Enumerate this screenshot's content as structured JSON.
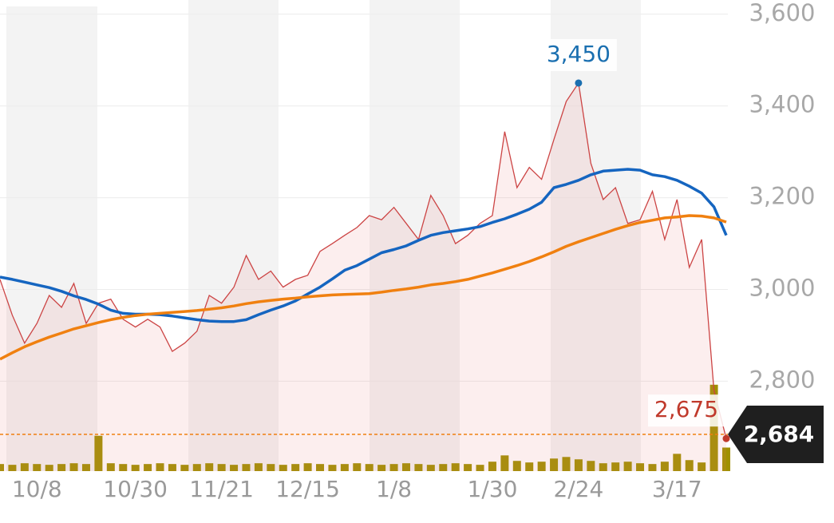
{
  "chart_data": {
    "type": "line",
    "categories": [
      null,
      null,
      null,
      "10/8",
      null,
      null,
      null,
      null,
      null,
      null,
      null,
      "10/30",
      null,
      null,
      null,
      null,
      null,
      null,
      "11/21",
      null,
      null,
      null,
      null,
      null,
      null,
      "12/15",
      null,
      null,
      null,
      null,
      null,
      null,
      "1/8",
      null,
      null,
      null,
      null,
      null,
      null,
      null,
      "1/30",
      null,
      null,
      null,
      null,
      null,
      null,
      "2/24",
      null,
      null,
      null,
      null,
      null,
      null,
      null,
      "3/17",
      null,
      null,
      null,
      null
    ],
    "series": [
      {
        "color": "#cc4444",
        "values": [
          3022,
          2944,
          2883,
          2926,
          2987,
          2961,
          3013,
          2926,
          2970,
          2979,
          2935,
          2918,
          2935,
          2918,
          2865,
          2883,
          2909,
          2987,
          2970,
          3005,
          3074,
          3022,
          3040,
          3005,
          3022,
          3031,
          3083,
          3100,
          3118,
          3135,
          3161,
          3152,
          3179,
          3144,
          3109,
          3205,
          3161,
          3100,
          3118,
          3144,
          3161,
          3344,
          3222,
          3266,
          3240,
          3327,
          3410,
          3450,
          3275,
          3196,
          3222,
          3144,
          3152,
          3214,
          3109,
          3196,
          3048,
          3109,
          2780,
          2675
        ],
        "value_labels": [
          null,
          null,
          null,
          null,
          null,
          null,
          null,
          null,
          null,
          null,
          null,
          null,
          null,
          null,
          null,
          null,
          null,
          null,
          null,
          null,
          null,
          null,
          null,
          null,
          null,
          null,
          null,
          null,
          null,
          null,
          null,
          null,
          null,
          null,
          null,
          null,
          null,
          null,
          null,
          null,
          null,
          null,
          null,
          null,
          null,
          null,
          null,
          "3,450",
          null,
          null,
          null,
          null,
          null,
          null,
          null,
          null,
          null,
          null,
          null,
          "2,675"
        ]
      },
      {
        "color": "#1565c0",
        "values": [
          3027,
          3022,
          3016,
          3010,
          3004,
          2996,
          2986,
          2978,
          2968,
          2955,
          2948,
          2946,
          2946,
          2945,
          2942,
          2938,
          2934,
          2931,
          2930,
          2930,
          2934,
          2945,
          2955,
          2964,
          2975,
          2990,
          3005,
          3023,
          3042,
          3052,
          3066,
          3080,
          3087,
          3095,
          3107,
          3118,
          3124,
          3128,
          3132,
          3137,
          3146,
          3154,
          3164,
          3175,
          3190,
          3222,
          3229,
          3238,
          3250,
          3258,
          3260,
          3262,
          3260,
          3250,
          3246,
          3238,
          3225,
          3210,
          3180,
          3118
        ]
      },
      {
        "color": "#f08010",
        "values": [
          2848,
          2862,
          2875,
          2886,
          2896,
          2905,
          2914,
          2921,
          2928,
          2934,
          2939,
          2943,
          2946,
          2948,
          2950,
          2952,
          2954,
          2957,
          2960,
          2964,
          2969,
          2973,
          2976,
          2979,
          2981,
          2984,
          2986,
          2988,
          2989,
          2990,
          2991,
          2994,
          2998,
          3001,
          3005,
          3010,
          3013,
          3017,
          3022,
          3029,
          3036,
          3044,
          3052,
          3061,
          3071,
          3082,
          3094,
          3104,
          3113,
          3122,
          3131,
          3139,
          3146,
          3151,
          3156,
          3158,
          3161,
          3160,
          3156,
          3147
        ]
      }
    ],
    "volume": {
      "color": "#a09000",
      "values": [
        9,
        8,
        10,
        9,
        8,
        9,
        10,
        9,
        45,
        10,
        9,
        8,
        9,
        10,
        9,
        8,
        9,
        10,
        9,
        8,
        9,
        10,
        9,
        8,
        9,
        10,
        9,
        8,
        9,
        10,
        9,
        8,
        9,
        10,
        9,
        8,
        9,
        10,
        9,
        8,
        12,
        20,
        13,
        11,
        12,
        16,
        18,
        15,
        13,
        10,
        11,
        12,
        10,
        9,
        12,
        22,
        14,
        11,
        110,
        30
      ],
      "lim": [
        0,
        120
      ]
    },
    "current_price": {
      "value": 2684,
      "label": "2,684"
    },
    "ylim": [
      2604,
      3631
    ],
    "yticks": [
      {
        "value": 2800,
        "label": "2,800"
      },
      {
        "value": 3000,
        "label": "3,000"
      },
      {
        "value": 3200,
        "label": "3,200"
      },
      {
        "value": 3400,
        "label": "3,400"
      },
      {
        "value": 3600,
        "label": "3,600"
      }
    ],
    "grid": true
  }
}
